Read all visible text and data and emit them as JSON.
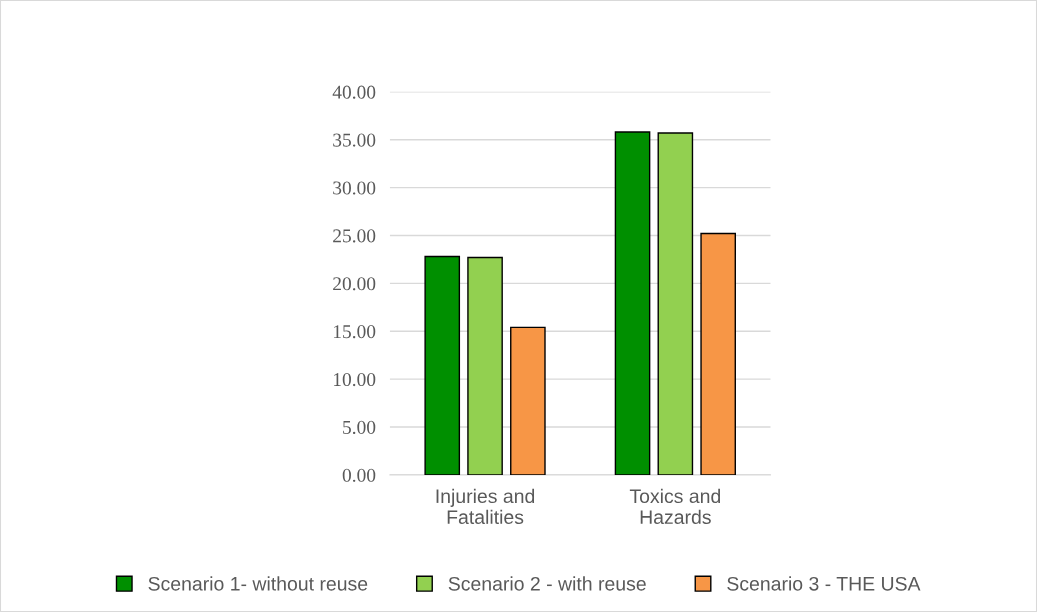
{
  "chart_data": {
    "type": "bar",
    "categories": [
      "Injuries and\nFatalities",
      "Toxics and\nHazards"
    ],
    "series": [
      {
        "name": "Scenario 1- without reuse",
        "color": "#008f00",
        "values": [
          22.8,
          35.8
        ]
      },
      {
        "name": "Scenario 2 - with reuse",
        "color": "#92d050",
        "values": [
          22.7,
          35.7
        ]
      },
      {
        "name": "Scenario 3 - THE USA",
        "color": "#f79646",
        "values": [
          15.4,
          25.2
        ]
      }
    ],
    "ylim": [
      0,
      40
    ],
    "yticks": [
      {
        "value": 0,
        "label": "0.00"
      },
      {
        "value": 5,
        "label": "5.00"
      },
      {
        "value": 10,
        "label": "10.00"
      },
      {
        "value": 15,
        "label": "15.00"
      },
      {
        "value": 20,
        "label": "20.00"
      },
      {
        "value": 25,
        "label": "25.00"
      },
      {
        "value": 30,
        "label": "30.00"
      },
      {
        "value": 35,
        "label": "35.00"
      },
      {
        "value": 40,
        "label": "40.00"
      }
    ],
    "grid": "y",
    "legend": "bottom"
  }
}
